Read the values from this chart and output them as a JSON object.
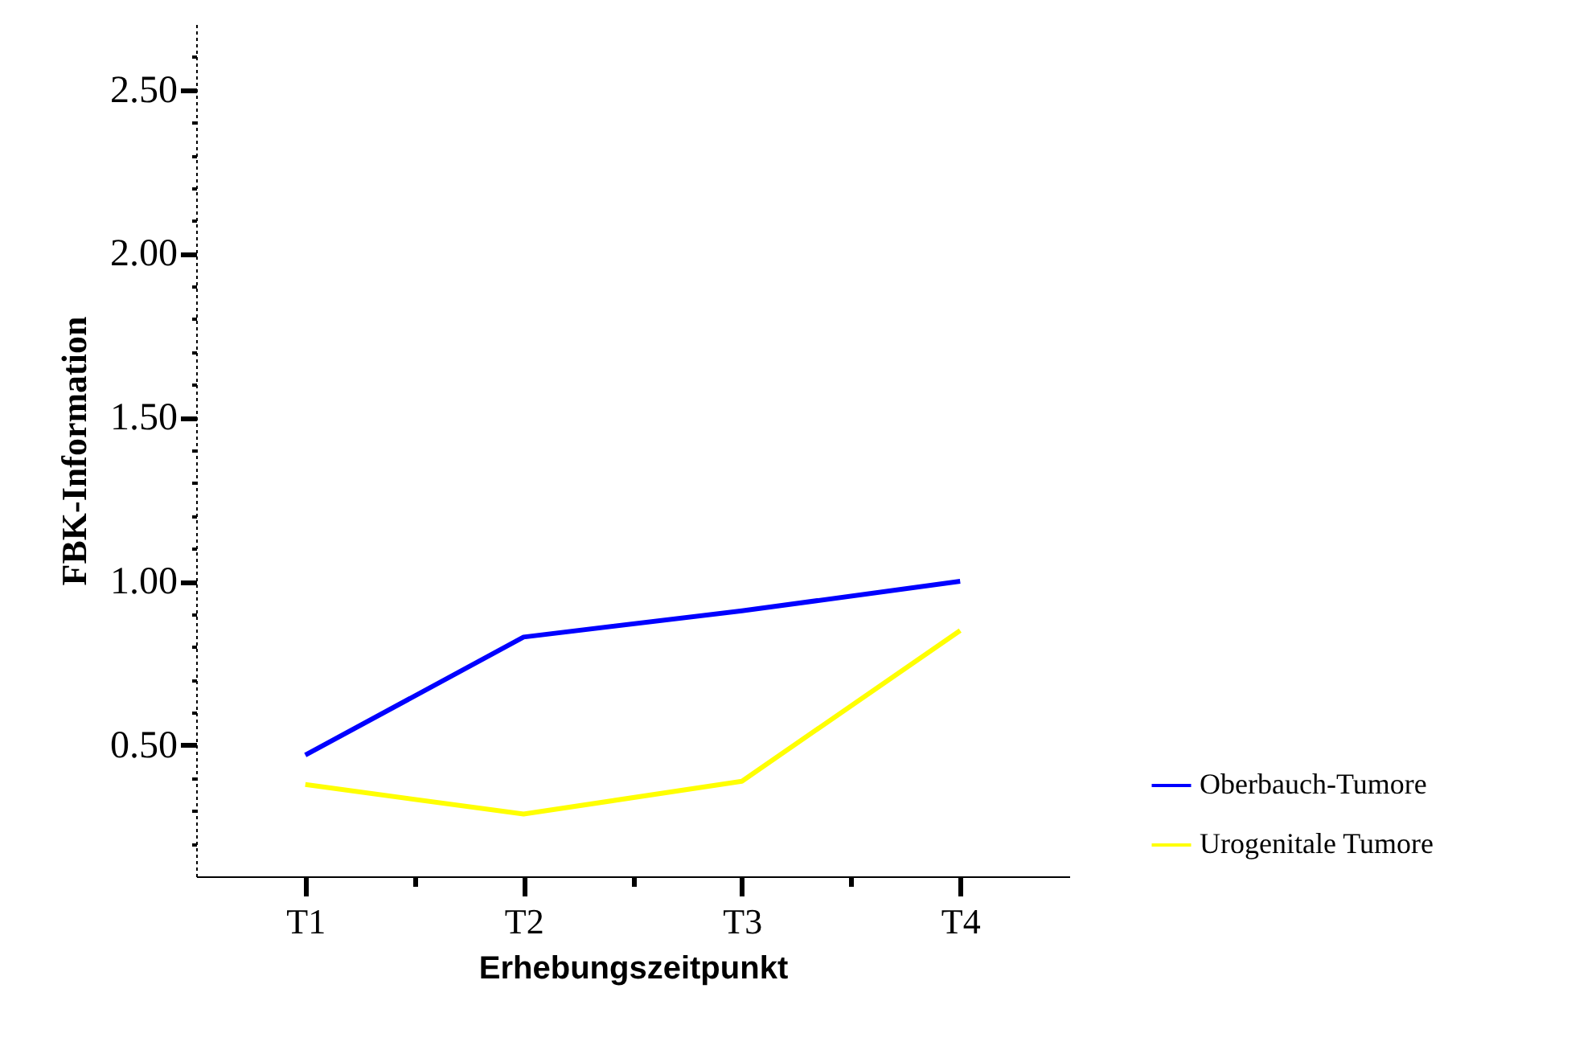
{
  "chart_data": {
    "type": "line",
    "xlabel": "Erhebungszeitpunkt",
    "ylabel": "FBK-Information",
    "categories": [
      "T1",
      "T2",
      "T3",
      "T4"
    ],
    "series": [
      {
        "name": "Oberbauch-Tumore",
        "color": "#0000ff",
        "values": [
          0.47,
          0.83,
          0.91,
          1.0
        ]
      },
      {
        "name": "Urogenitale Tumore",
        "color": "#ffff00",
        "values": [
          0.38,
          0.29,
          0.39,
          0.85
        ]
      }
    ],
    "ylim": [
      0.1,
      2.7
    ],
    "yticks": [
      {
        "value": 0.2,
        "label": null
      },
      {
        "value": 0.3,
        "label": null
      },
      {
        "value": 0.4,
        "label": null
      },
      {
        "value": 0.5,
        "label": "0.50"
      },
      {
        "value": 0.6,
        "label": null
      },
      {
        "value": 0.7,
        "label": null
      },
      {
        "value": 0.8,
        "label": null
      },
      {
        "value": 0.9,
        "label": null
      },
      {
        "value": 1.0,
        "label": "1.00"
      },
      {
        "value": 1.1,
        "label": null
      },
      {
        "value": 1.2,
        "label": null
      },
      {
        "value": 1.3,
        "label": null
      },
      {
        "value": 1.4,
        "label": null
      },
      {
        "value": 1.5,
        "label": "1.50"
      },
      {
        "value": 1.6,
        "label": null
      },
      {
        "value": 1.7,
        "label": null
      },
      {
        "value": 1.8,
        "label": null
      },
      {
        "value": 1.9,
        "label": null
      },
      {
        "value": 2.0,
        "label": "2.00"
      },
      {
        "value": 2.1,
        "label": null
      },
      {
        "value": 2.2,
        "label": null
      },
      {
        "value": 2.3,
        "label": null
      },
      {
        "value": 2.4,
        "label": null
      },
      {
        "value": 2.5,
        "label": "2.50"
      },
      {
        "value": 2.6,
        "label": null
      }
    ],
    "grid": false,
    "legend": "right",
    "line_style": "solid",
    "marker": "none"
  }
}
